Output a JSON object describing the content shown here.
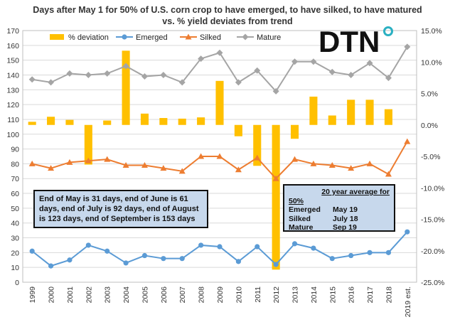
{
  "title_line1": "Days after May 1 for 50% of U.S. corn crop to have emerged, to have silked, to have matured",
  "title_line2": "vs. % yield deviates from trend",
  "logo_text": "DTN",
  "note_box": "End of May is 31 days, end of June is 61 days, end of July is 92 days, end of August is 123 days, end of September is 153 days",
  "avg_box": {
    "header": "20 year average for",
    "subheader": "50%",
    "rows": [
      {
        "label": "Emerged",
        "value": "May 19"
      },
      {
        "label": "Silked",
        "value": "July 18"
      },
      {
        "label": "Mature",
        "value": "Sep 19"
      }
    ]
  },
  "colors": {
    "deviation": "#FFC000",
    "emerged": "#5B9BD5",
    "silked": "#ED7D31",
    "mature": "#A5A5A5",
    "grid": "#D9D9D9",
    "logo_accent": "#2BB0C2"
  },
  "chart_data": {
    "type": "bar+line",
    "categories": [
      "1999",
      "2000",
      "2001",
      "2002",
      "2003",
      "2004",
      "2005",
      "2006",
      "2007",
      "2008",
      "2009",
      "2010",
      "2011",
      "2012",
      "2013",
      "2014",
      "2015",
      "2016",
      "2017",
      "2018",
      "2019 est."
    ],
    "y_left": {
      "min": 0,
      "max": 170,
      "step": 10,
      "ticks": [
        "0",
        "10",
        "20",
        "30",
        "40",
        "50",
        "60",
        "70",
        "80",
        "90",
        "100",
        "110",
        "120",
        "130",
        "140",
        "150",
        "160",
        "170"
      ]
    },
    "y_right": {
      "min": -25,
      "max": 15,
      "step": 5,
      "ticks": [
        "-25.0%",
        "-20.0%",
        "-15.0%",
        "-10.0%",
        "-5.0%",
        "0.0%",
        "5.0%",
        "10.0%",
        "15.0%"
      ]
    },
    "legend_position": "top",
    "grid": true,
    "series": [
      {
        "name": "% deviation",
        "type": "bar",
        "axis": "right",
        "values": [
          0.5,
          1.3,
          0.8,
          -6.3,
          0.7,
          11.8,
          1.8,
          1.1,
          1.0,
          1.2,
          7.0,
          -1.8,
          -6.5,
          -23.0,
          -2.2,
          4.5,
          1.5,
          4.0,
          4.0,
          2.5,
          null
        ]
      },
      {
        "name": "Emerged",
        "type": "line",
        "axis": "left",
        "values": [
          21,
          11,
          15,
          25,
          21,
          13,
          18,
          16,
          16,
          25,
          24,
          14,
          24,
          12,
          26,
          23,
          16,
          18,
          20,
          20,
          34
        ]
      },
      {
        "name": "Silked",
        "type": "line",
        "axis": "left",
        "values": [
          80,
          77,
          81,
          82,
          83,
          79,
          79,
          77,
          75,
          85,
          85,
          76,
          84,
          70,
          83,
          80,
          79,
          77,
          80,
          73,
          95
        ]
      },
      {
        "name": "Mature",
        "type": "line",
        "axis": "left",
        "values": [
          137,
          135,
          141,
          140,
          141,
          146,
          139,
          140,
          135,
          151,
          155,
          135,
          143,
          129,
          149,
          149,
          142,
          140,
          148,
          138,
          159
        ]
      }
    ]
  }
}
